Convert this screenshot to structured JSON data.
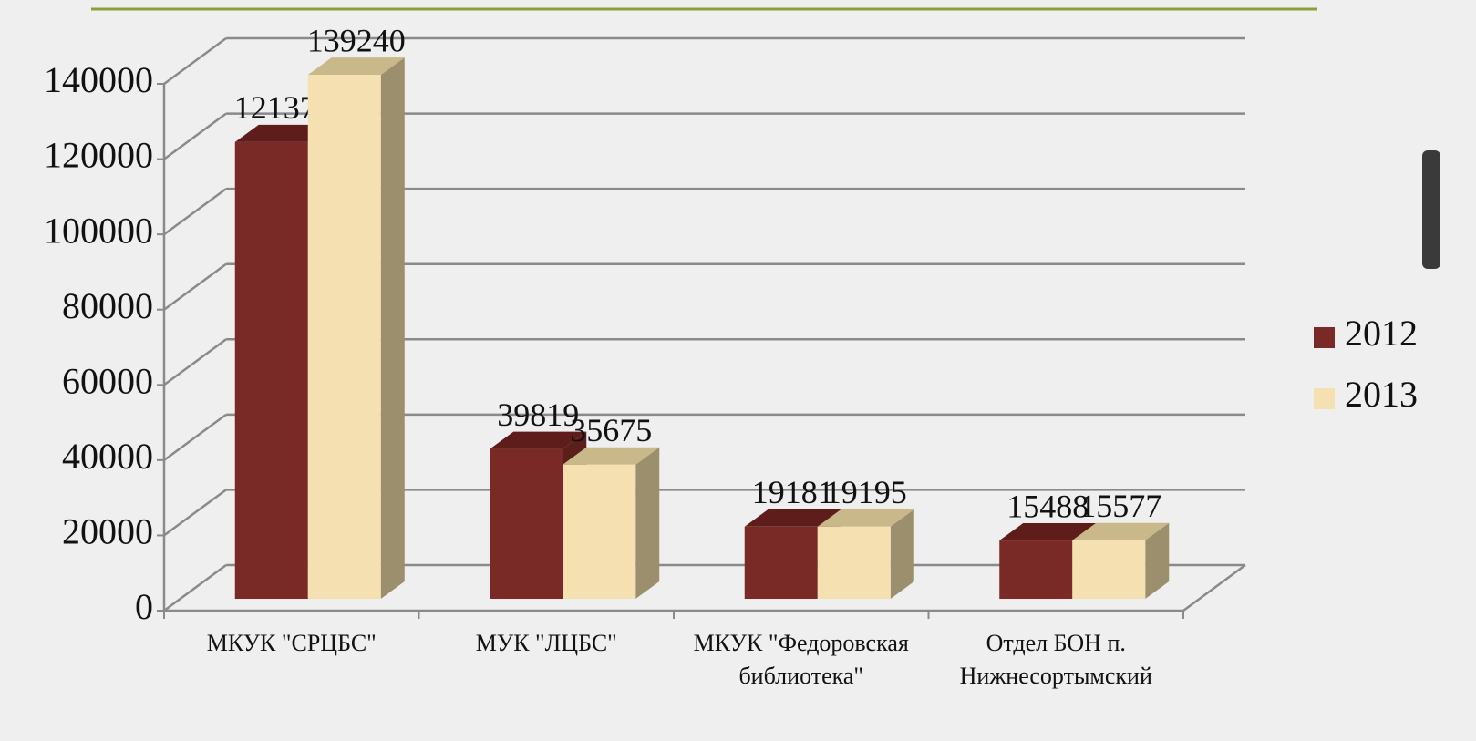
{
  "chart_data": {
    "type": "bar3d",
    "categories": [
      "МКУК \"СРЦБС\"",
      "МУК \"ЛЦБС\"",
      "МКУК \"Федоровская библиотека\"",
      "Отдел БОН п. Нижнесортымский"
    ],
    "series": [
      {
        "name": "2012",
        "color": "#7a2a26",
        "values": [
          121378,
          39819,
          19181,
          15488
        ]
      },
      {
        "name": "2013",
        "color": "#f5e0b2",
        "values": [
          139240,
          35675,
          19195,
          15577
        ]
      }
    ],
    "ylim": [
      0,
      140000
    ],
    "yticks": [
      0,
      20000,
      40000,
      60000,
      80000,
      100000,
      120000,
      140000
    ],
    "grid": true,
    "legend": "right",
    "data_labels": true
  }
}
